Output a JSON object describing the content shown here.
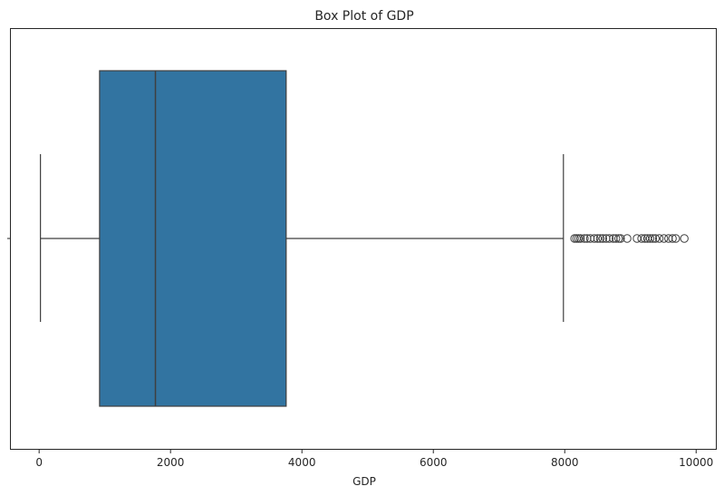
{
  "chart_data": {
    "type": "box",
    "orientation": "horizontal",
    "title": "Box Plot of GDP",
    "xlabel": "GDP",
    "ylabel": "",
    "xlim": [
      -430,
      10300
    ],
    "xticks": [
      0,
      2000,
      4000,
      6000,
      8000,
      10000
    ],
    "xtick_labels": [
      "0",
      "2000",
      "4000",
      "6000",
      "8000",
      "10000"
    ],
    "grid": false,
    "box_color": "#3274a1",
    "line_color": "#3f3f3f",
    "box": {
      "whisker_low": 20,
      "q1": 920,
      "median": 1770,
      "q3": 3760,
      "whisker_high": 7980
    },
    "outliers": [
      8150,
      8180,
      8210,
      8240,
      8300,
      8340,
      8390,
      8450,
      8500,
      8540,
      8580,
      8630,
      8680,
      8740,
      8780,
      8820,
      8850,
      8950,
      9100,
      9170,
      9220,
      9260,
      9300,
      9340,
      9380,
      9440,
      9510,
      9580,
      9640,
      9690,
      9820
    ]
  }
}
